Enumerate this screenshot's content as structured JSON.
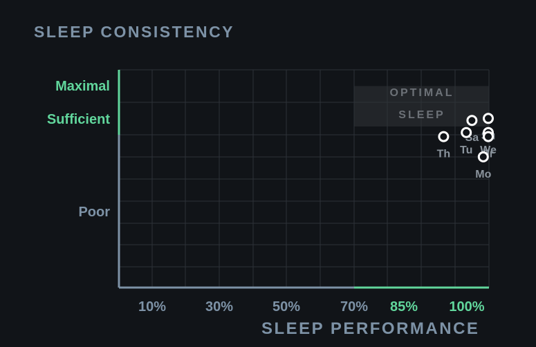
{
  "title": "SLEEP CONSISTENCY",
  "chart_data": {
    "type": "scatter",
    "title": "SLEEP CONSISTENCY",
    "xlabel": "SLEEP PERFORMANCE",
    "ylabel": "",
    "x_ticks": [
      "10%",
      "30%",
      "50%",
      "70%",
      "85%",
      "100%"
    ],
    "y_ticks": [
      "Maximal",
      "Sufficient",
      "Poor"
    ],
    "highlight_region": {
      "label_lines": [
        "OPTIMAL",
        "SLEEP"
      ],
      "x_range": [
        70,
        100
      ],
      "y_range": [
        80,
        100
      ]
    },
    "points": [
      {
        "label": "Th",
        "x": 92,
        "y": 75
      },
      {
        "label": "Tu",
        "x": 96,
        "y": 77
      },
      {
        "label": "Sa",
        "x": 97,
        "y": 83
      },
      {
        "label": "Su",
        "x": 100,
        "y": 84
      },
      {
        "label": "We",
        "x": 100,
        "y": 77
      },
      {
        "label": "Fr",
        "x": 100,
        "y": 75
      },
      {
        "label": "Mo",
        "x": 99,
        "y": 65
      }
    ],
    "grid": true
  },
  "colors": {
    "background": "#111418",
    "axis": "#7d92a6",
    "accent": "#61d69c",
    "grid": "#2d3238",
    "zone": "#222529",
    "point_stroke": "#ffffff"
  }
}
